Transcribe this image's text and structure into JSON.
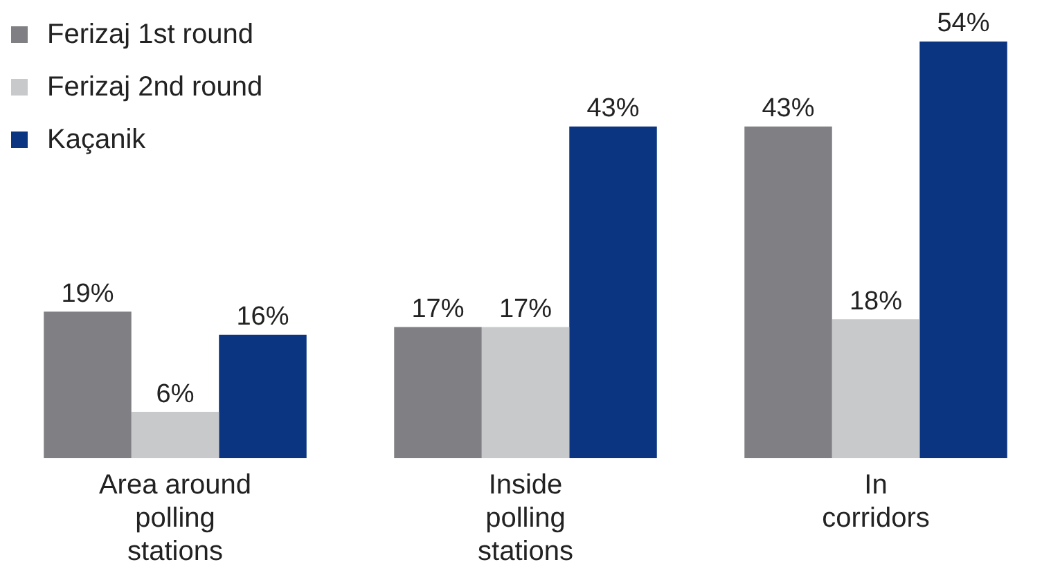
{
  "chart_data": {
    "type": "bar",
    "categories": [
      "Area around polling stations",
      "Inside polling stations",
      "In corridors"
    ],
    "series": [
      {
        "name": "Ferizaj 1st round",
        "color": "#807f83",
        "values": [
          19,
          17,
          43
        ],
        "value_labels": [
          "19%",
          "17%",
          "43%"
        ]
      },
      {
        "name": "Ferizaj 2nd round",
        "color": "#c8c9cb",
        "values": [
          6,
          17,
          18
        ],
        "value_labels": [
          "6%",
          "17%",
          "18%"
        ]
      },
      {
        "name": "Kaçanik",
        "color": "#0b3481",
        "values": [
          16,
          43,
          54
        ],
        "value_labels": [
          "16%",
          "43%",
          "54%"
        ]
      }
    ],
    "legend": "top left",
    "grid": false
  }
}
